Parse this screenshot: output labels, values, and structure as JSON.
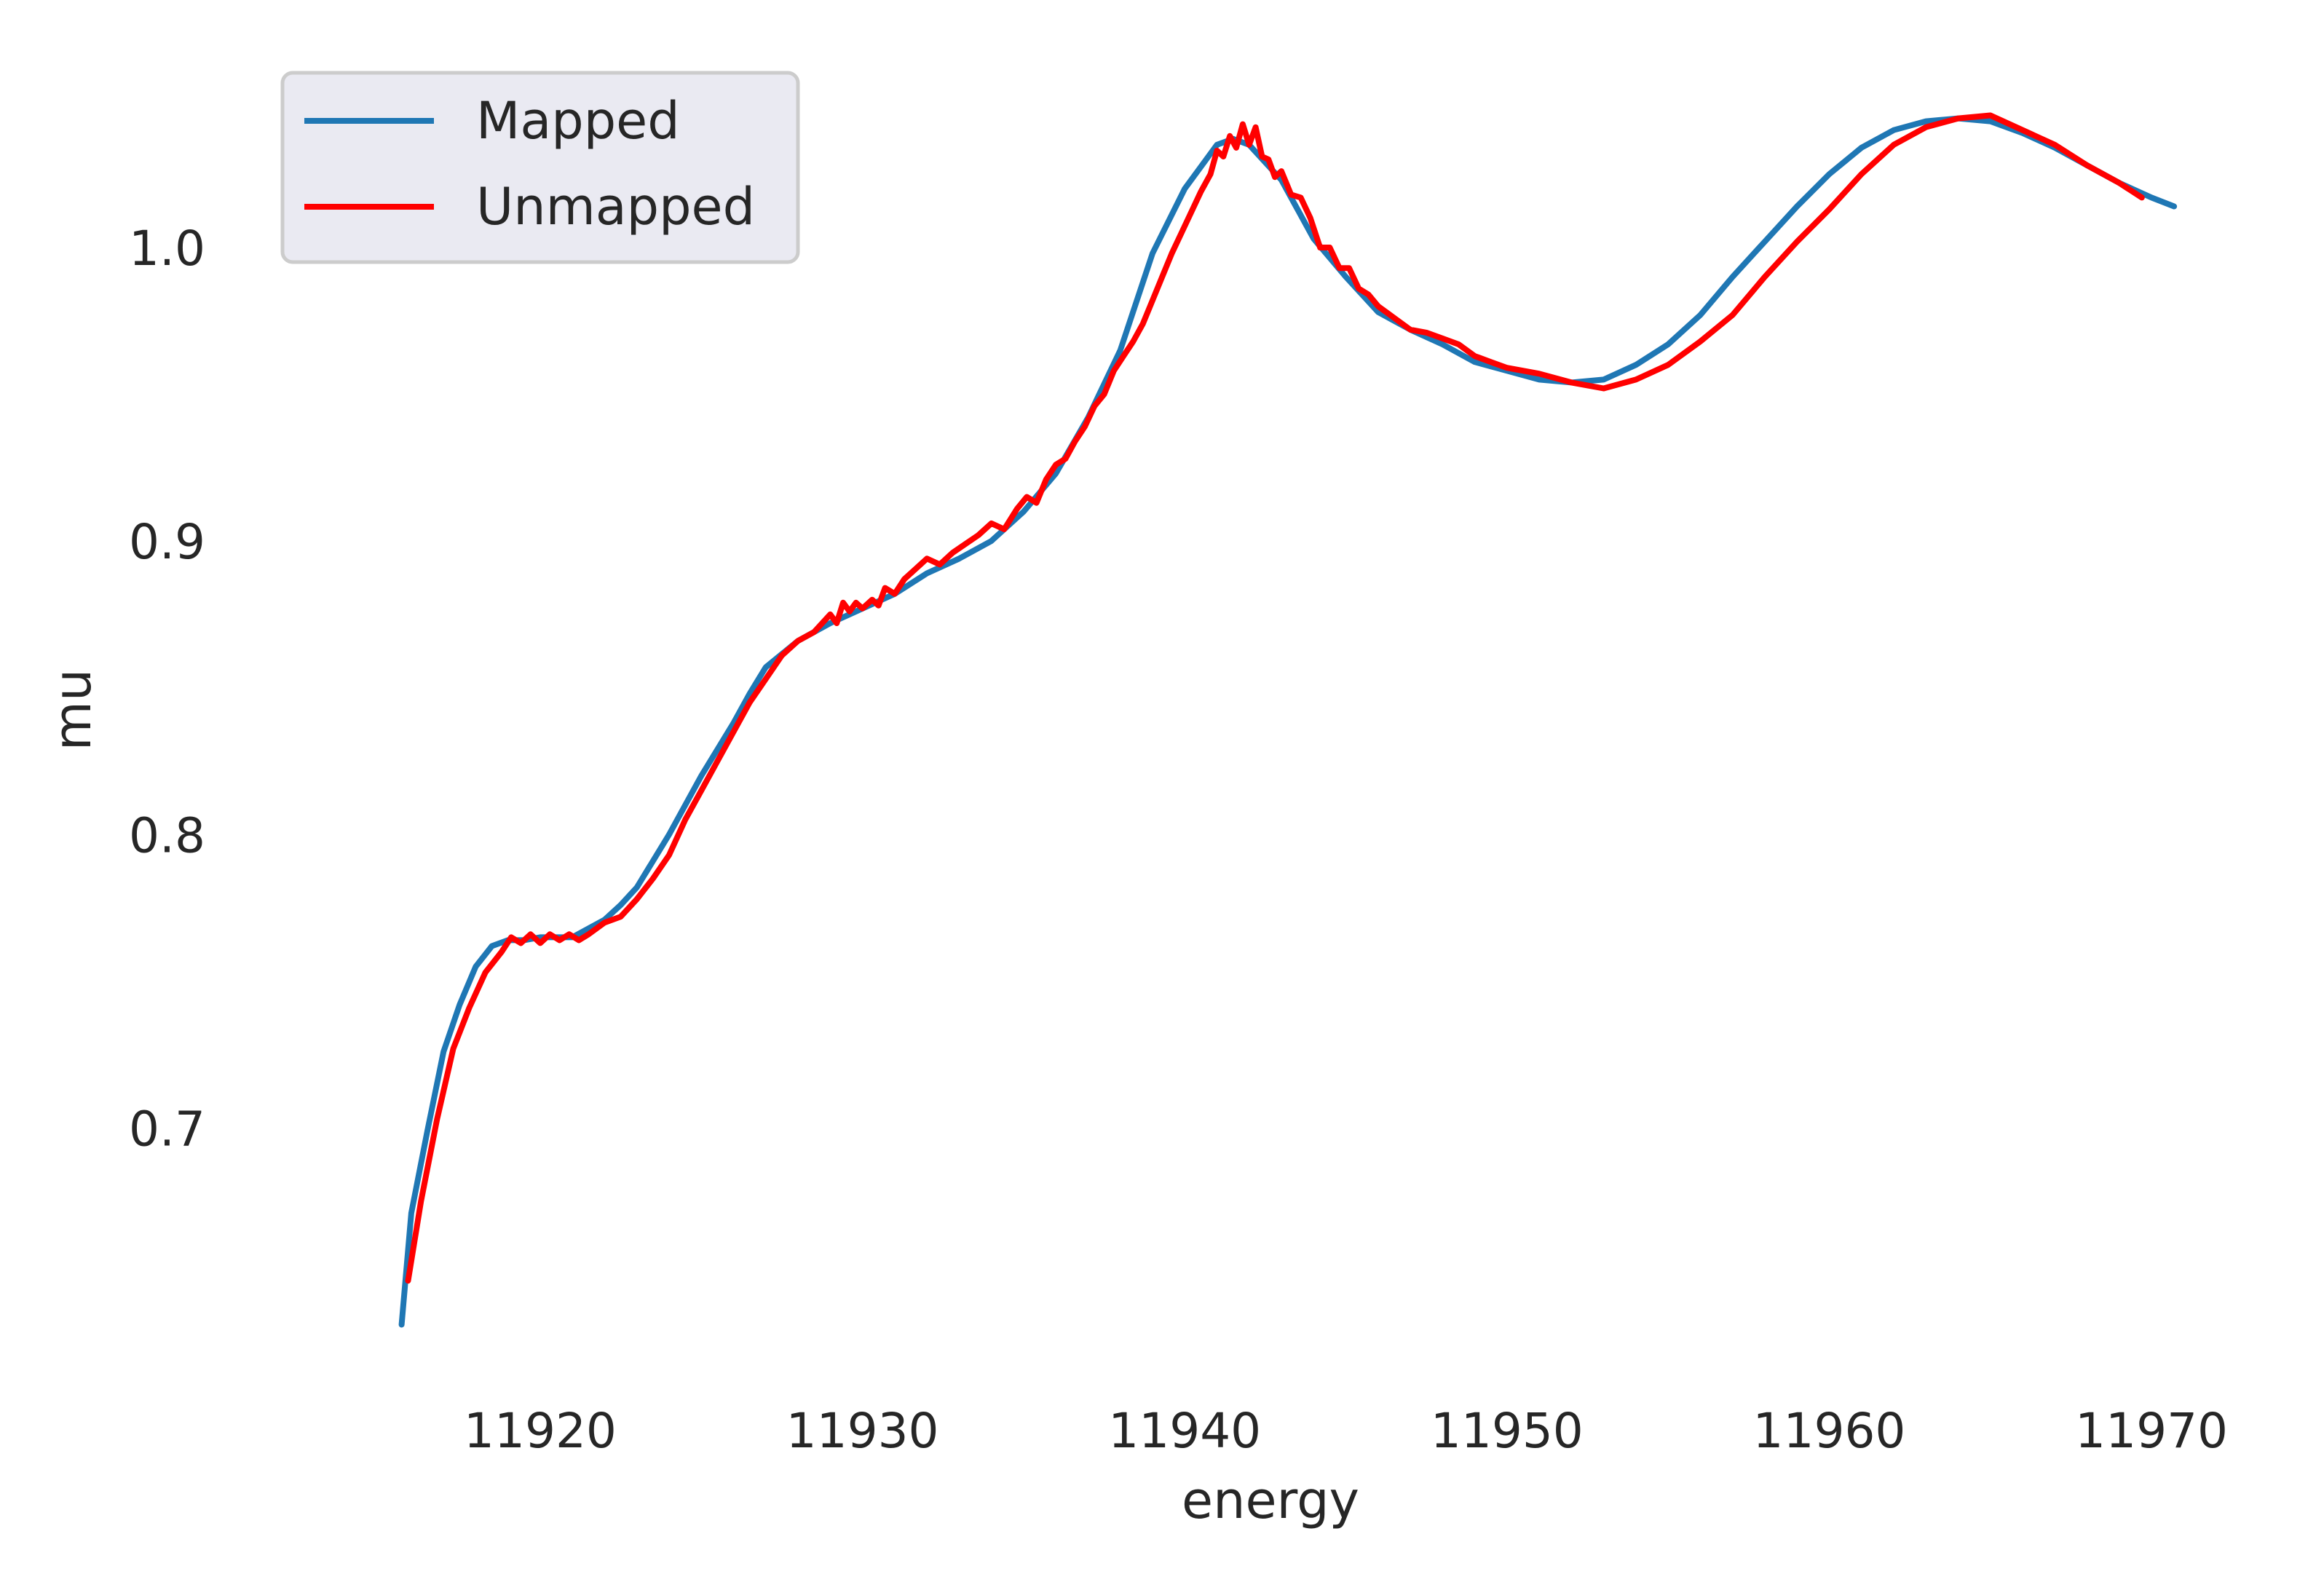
{
  "chart_data": {
    "type": "line",
    "title": "",
    "xlabel": "energy",
    "ylabel": "mu",
    "xlim": [
      11912.5,
      11973.5
    ],
    "ylim": [
      0.618,
      1.062
    ],
    "xticks": [
      11920,
      11930,
      11940,
      11950,
      11960,
      11970
    ],
    "xtick_labels": [
      "11920",
      "11930",
      "11940",
      "11950",
      "11960",
      "11970"
    ],
    "yticks": [
      0.7,
      0.8,
      0.9,
      1.0
    ],
    "ytick_labels": [
      "0.7",
      "0.8",
      "0.9",
      "1.0"
    ],
    "grid": false,
    "background": "#ffffff",
    "legend": {
      "position": "upper-left",
      "background": "#eaeaf2",
      "border": "#cccccc"
    },
    "series": [
      {
        "name": "Mapped",
        "color": "#1f77b4",
        "x": [
          11915.7,
          11916.0,
          11916.5,
          11917.0,
          11917.5,
          11918.0,
          11918.5,
          11919.0,
          11919.5,
          11920.0,
          11921.0,
          11922.0,
          11922.5,
          11923.0,
          11924.0,
          11925.0,
          11926.0,
          11926.5,
          11927.0,
          11928.0,
          11929.0,
          11930.0,
          11931.0,
          11932.0,
          11933.0,
          11934.0,
          11935.0,
          11936.0,
          11937.0,
          11938.0,
          11939.0,
          11940.0,
          11941.0,
          11941.5,
          11942.0,
          11943.0,
          11944.0,
          11945.0,
          11946.0,
          11947.0,
          11948.0,
          11949.0,
          11950.0,
          11951.0,
          11952.0,
          11953.0,
          11954.0,
          11955.0,
          11956.0,
          11957.0,
          11958.0,
          11959.0,
          11960.0,
          11961.0,
          11962.0,
          11963.0,
          11964.0,
          11965.0,
          11966.0,
          11967.0,
          11968.0,
          11969.0,
          11970.0,
          11970.7
        ],
        "y": [
          0.633,
          0.671,
          0.699,
          0.726,
          0.742,
          0.755,
          0.762,
          0.764,
          0.764,
          0.765,
          0.765,
          0.771,
          0.776,
          0.782,
          0.8,
          0.82,
          0.838,
          0.848,
          0.857,
          0.866,
          0.872,
          0.877,
          0.882,
          0.889,
          0.894,
          0.9,
          0.91,
          0.923,
          0.942,
          0.965,
          0.998,
          1.02,
          1.035,
          1.037,
          1.035,
          1.023,
          1.003,
          0.99,
          0.978,
          0.972,
          0.967,
          0.961,
          0.958,
          0.955,
          0.954,
          0.955,
          0.96,
          0.967,
          0.977,
          0.99,
          1.002,
          1.014,
          1.025,
          1.034,
          1.04,
          1.043,
          1.044,
          1.043,
          1.039,
          1.034,
          1.028,
          1.022,
          1.017,
          1.014
        ]
      },
      {
        "name": "Unmapped",
        "color": "#ff0000",
        "x": [
          11915.9,
          11916.3,
          11916.8,
          11917.3,
          11917.8,
          11918.3,
          11918.8,
          11919.1,
          11919.4,
          11919.7,
          11920.0,
          11920.3,
          11920.6,
          11920.9,
          11921.2,
          11921.5,
          11922.0,
          11922.5,
          11923.0,
          11923.5,
          11924.0,
          11924.5,
          11925.0,
          11925.5,
          11926.0,
          11926.5,
          11927.0,
          11927.5,
          11928.0,
          11928.5,
          11929.0,
          11929.2,
          11929.4,
          11929.6,
          11929.8,
          11930.0,
          11930.3,
          11930.5,
          11930.7,
          11931.0,
          11931.3,
          11931.6,
          11932.0,
          11932.4,
          11932.8,
          11933.2,
          11933.6,
          11934.0,
          11934.4,
          11934.8,
          11935.1,
          11935.4,
          11935.7,
          11936.0,
          11936.3,
          11936.6,
          11936.9,
          11937.2,
          11937.5,
          11937.8,
          11938.1,
          11938.4,
          11938.7,
          11939.0,
          11939.3,
          11939.6,
          11939.9,
          11940.2,
          11940.5,
          11940.8,
          11941.0,
          11941.2,
          11941.4,
          11941.6,
          11941.8,
          11942.0,
          11942.2,
          11942.4,
          11942.6,
          11942.8,
          11943.0,
          11943.3,
          11943.6,
          11943.9,
          11944.2,
          11944.5,
          11944.8,
          11945.1,
          11945.4,
          11945.7,
          11946.0,
          11946.5,
          11947.0,
          11947.5,
          11948.0,
          11948.5,
          11949.0,
          11949.5,
          11950.0,
          11951.0,
          11952.0,
          11953.0,
          11954.0,
          11955.0,
          11956.0,
          11957.0,
          11958.0,
          11959.0,
          11960.0,
          11961.0,
          11962.0,
          11963.0,
          11964.0,
          11965.0,
          11966.0,
          11967.0,
          11968.0,
          11969.0,
          11969.7
        ],
        "y": [
          0.648,
          0.675,
          0.703,
          0.727,
          0.741,
          0.753,
          0.76,
          0.765,
          0.763,
          0.766,
          0.763,
          0.766,
          0.764,
          0.766,
          0.764,
          0.766,
          0.77,
          0.772,
          0.778,
          0.785,
          0.793,
          0.805,
          0.815,
          0.825,
          0.835,
          0.845,
          0.853,
          0.861,
          0.866,
          0.869,
          0.875,
          0.872,
          0.879,
          0.876,
          0.879,
          0.877,
          0.88,
          0.878,
          0.884,
          0.882,
          0.887,
          0.89,
          0.894,
          0.892,
          0.896,
          0.899,
          0.902,
          0.906,
          0.904,
          0.911,
          0.915,
          0.913,
          0.921,
          0.926,
          0.928,
          0.934,
          0.939,
          0.946,
          0.95,
          0.958,
          0.963,
          0.968,
          0.974,
          0.982,
          0.99,
          0.998,
          1.005,
          1.012,
          1.019,
          1.025,
          1.033,
          1.031,
          1.038,
          1.034,
          1.042,
          1.035,
          1.041,
          1.031,
          1.03,
          1.024,
          1.026,
          1.018,
          1.017,
          1.01,
          1.0,
          1.0,
          0.993,
          0.993,
          0.986,
          0.984,
          0.98,
          0.976,
          0.972,
          0.971,
          0.969,
          0.967,
          0.963,
          0.961,
          0.959,
          0.957,
          0.954,
          0.952,
          0.955,
          0.96,
          0.968,
          0.977,
          0.99,
          1.002,
          1.013,
          1.025,
          1.035,
          1.041,
          1.044,
          1.045,
          1.04,
          1.035,
          1.028,
          1.022,
          1.017
        ]
      }
    ]
  }
}
